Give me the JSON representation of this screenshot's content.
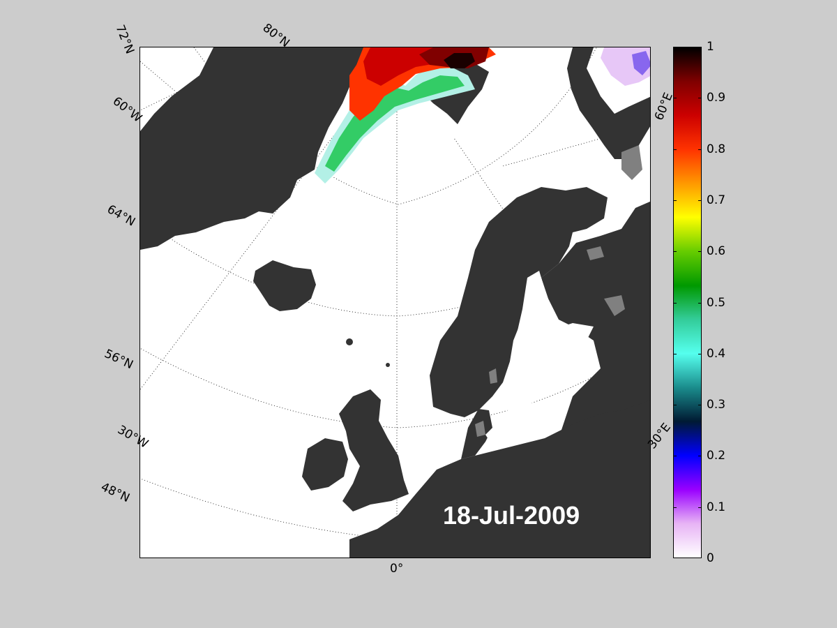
{
  "map": {
    "date": "18-Jul-2009",
    "latitude_labels": [
      "72°N",
      "80°N",
      "64°N",
      "56°N",
      "48°N"
    ],
    "longitude_labels": [
      "60°W",
      "30°W",
      "0°",
      "30°E",
      "60°E"
    ],
    "land_color": "#333333",
    "ocean_color": "#ffffff",
    "lake_color": "#808080"
  },
  "colorbar": {
    "min": 0,
    "max": 1,
    "ticks": [
      "0",
      "0.1",
      "0.2",
      "0.3",
      "0.4",
      "0.5",
      "0.6",
      "0.7",
      "0.8",
      "0.9",
      "1"
    ],
    "stops": [
      "#ffffff",
      "#e7b3f5",
      "#9900ff",
      "#0000ff",
      "#001a33",
      "#1a8c8c",
      "#55ffee",
      "#33cc99",
      "#009900",
      "#66cc00",
      "#ffff00",
      "#ff9900",
      "#ff3300",
      "#cc0000",
      "#800000",
      "#000000"
    ]
  }
}
